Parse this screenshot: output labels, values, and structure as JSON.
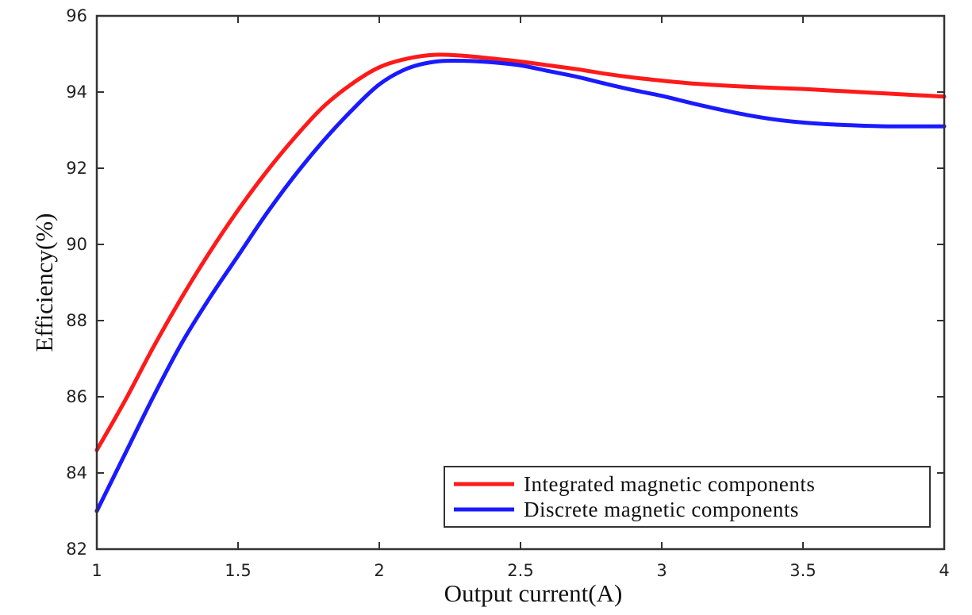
{
  "chart_data": {
    "type": "line",
    "title": "",
    "xlabel": "Output current(A)",
    "ylabel": "Efficiency(%)",
    "xlim": [
      1,
      4
    ],
    "ylim": [
      82,
      96
    ],
    "xticks": [
      1,
      1.5,
      2,
      2.5,
      3,
      3.5,
      4
    ],
    "xtick_labels": [
      "1",
      "1.5",
      "2",
      "2.5",
      "3",
      "3.5",
      "4"
    ],
    "yticks": [
      82,
      84,
      86,
      88,
      90,
      92,
      94,
      96
    ],
    "ytick_labels": [
      "82",
      "84",
      "86",
      "88",
      "90",
      "92",
      "94",
      "96"
    ],
    "grid": false,
    "legend_position": "bottom-right",
    "series": [
      {
        "name": "Integrated magnetic components",
        "color": "#ff1a1a",
        "x": [
          1.0,
          1.1,
          1.2,
          1.3,
          1.4,
          1.5,
          1.6,
          1.7,
          1.8,
          1.9,
          2.0,
          2.1,
          2.2,
          2.3,
          2.4,
          2.5,
          2.6,
          2.7,
          2.8,
          2.9,
          3.0,
          3.1,
          3.2,
          3.3,
          3.4,
          3.5,
          3.6,
          3.7,
          3.8,
          3.9,
          4.0
        ],
        "y": [
          84.6,
          85.9,
          87.3,
          88.6,
          89.8,
          90.9,
          91.9,
          92.8,
          93.6,
          94.2,
          94.65,
          94.88,
          94.98,
          94.95,
          94.88,
          94.8,
          94.7,
          94.6,
          94.48,
          94.38,
          94.3,
          94.23,
          94.18,
          94.14,
          94.11,
          94.08,
          94.04,
          94.0,
          93.96,
          93.92,
          93.88
        ]
      },
      {
        "name": "Discrete magnetic components",
        "color": "#1a1aff",
        "x": [
          1.0,
          1.1,
          1.2,
          1.3,
          1.4,
          1.5,
          1.6,
          1.7,
          1.8,
          1.9,
          2.0,
          2.1,
          2.2,
          2.3,
          2.4,
          2.5,
          2.6,
          2.7,
          2.8,
          2.9,
          3.0,
          3.1,
          3.2,
          3.3,
          3.4,
          3.5,
          3.6,
          3.7,
          3.8,
          3.9,
          4.0
        ],
        "y": [
          83.0,
          84.5,
          86.0,
          87.4,
          88.6,
          89.7,
          90.8,
          91.8,
          92.7,
          93.5,
          94.2,
          94.62,
          94.8,
          94.82,
          94.78,
          94.7,
          94.55,
          94.4,
          94.22,
          94.05,
          93.9,
          93.72,
          93.55,
          93.4,
          93.28,
          93.2,
          93.15,
          93.12,
          93.1,
          93.1,
          93.1
        ]
      }
    ]
  }
}
